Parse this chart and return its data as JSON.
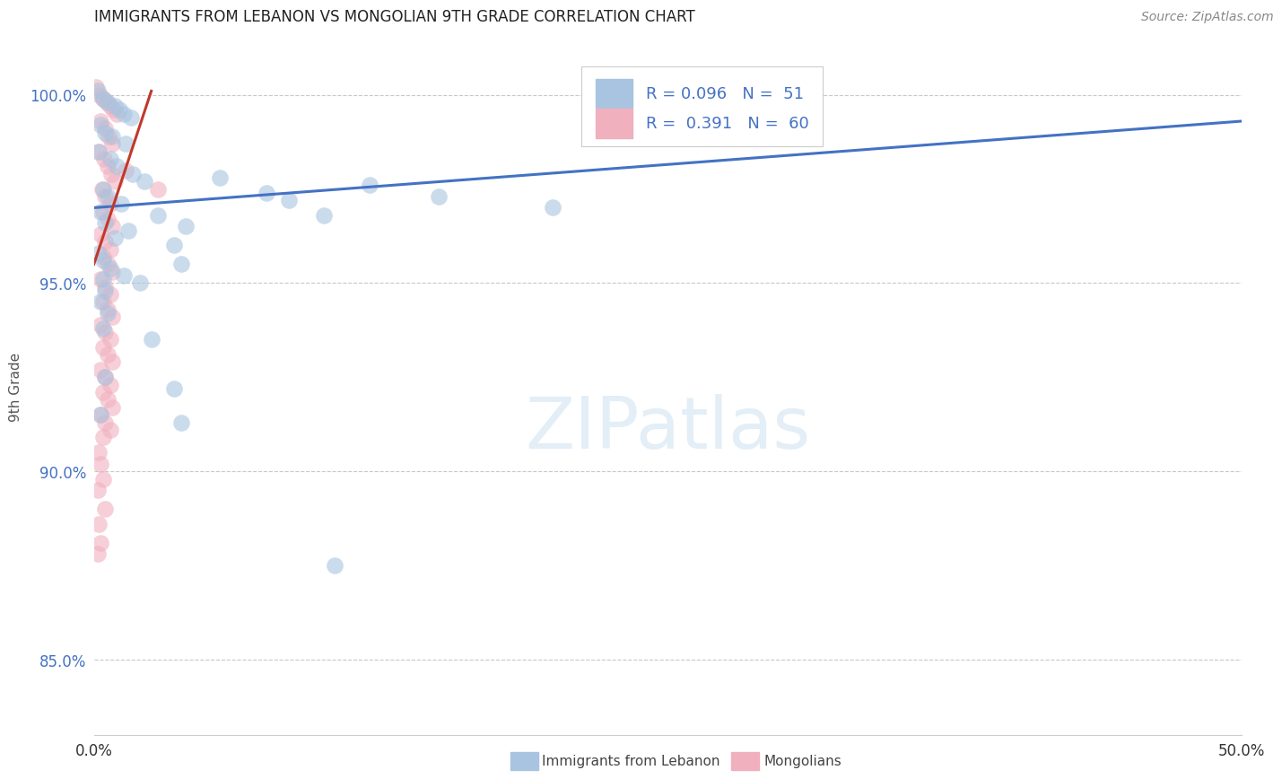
{
  "title": "IMMIGRANTS FROM LEBANON VS MONGOLIAN 9TH GRADE CORRELATION CHART",
  "source": "Source: ZipAtlas.com",
  "ylabel": "9th Grade",
  "xlim": [
    0.0,
    50.0
  ],
  "ylim": [
    83.0,
    101.5
  ],
  "yticks": [
    85.0,
    90.0,
    95.0,
    100.0
  ],
  "ytick_labels": [
    "85.0%",
    "90.0%",
    "95.0%",
    "100.0%"
  ],
  "xticks": [
    0.0,
    10.0,
    20.0,
    30.0,
    40.0,
    50.0
  ],
  "xtick_labels": [
    "0.0%",
    "",
    "",
    "",
    "",
    "50.0%"
  ],
  "legend_line1": "R = 0.096   N =  51",
  "legend_line2": "R =  0.391   N =  60",
  "blue_color": "#a8c4e0",
  "pink_color": "#f0b0be",
  "trend_blue": "#4472c4",
  "trend_pink": "#c0392b",
  "watermark_text": "ZIPatlas",
  "blue_scatter": [
    [
      0.15,
      100.1
    ],
    [
      0.4,
      99.9
    ],
    [
      0.6,
      99.8
    ],
    [
      0.9,
      99.7
    ],
    [
      1.1,
      99.6
    ],
    [
      1.3,
      99.5
    ],
    [
      1.6,
      99.4
    ],
    [
      0.3,
      99.2
    ],
    [
      0.5,
      99.0
    ],
    [
      0.8,
      98.9
    ],
    [
      1.4,
      98.7
    ],
    [
      0.2,
      98.5
    ],
    [
      0.7,
      98.3
    ],
    [
      1.0,
      98.1
    ],
    [
      1.7,
      97.9
    ],
    [
      2.2,
      97.7
    ],
    [
      0.4,
      97.5
    ],
    [
      0.6,
      97.3
    ],
    [
      1.2,
      97.1
    ],
    [
      0.3,
      96.9
    ],
    [
      2.8,
      96.8
    ],
    [
      0.5,
      96.6
    ],
    [
      1.5,
      96.4
    ],
    [
      0.9,
      96.2
    ],
    [
      3.5,
      96.0
    ],
    [
      5.5,
      97.8
    ],
    [
      7.5,
      97.4
    ],
    [
      0.2,
      95.8
    ],
    [
      0.4,
      95.6
    ],
    [
      0.7,
      95.4
    ],
    [
      1.3,
      95.2
    ],
    [
      2.0,
      95.0
    ],
    [
      0.5,
      94.8
    ],
    [
      4.0,
      96.5
    ],
    [
      8.5,
      97.2
    ],
    [
      12.0,
      97.6
    ],
    [
      20.0,
      97.0
    ],
    [
      25.0,
      100.3
    ],
    [
      0.3,
      94.5
    ],
    [
      0.6,
      94.2
    ],
    [
      3.8,
      95.5
    ],
    [
      10.0,
      96.8
    ],
    [
      15.0,
      97.3
    ],
    [
      0.4,
      93.8
    ],
    [
      2.5,
      93.5
    ],
    [
      0.5,
      92.5
    ],
    [
      3.5,
      92.2
    ],
    [
      0.3,
      91.5
    ],
    [
      3.8,
      91.3
    ],
    [
      10.5,
      87.5
    ],
    [
      0.4,
      95.1
    ]
  ],
  "pink_scatter": [
    [
      0.1,
      100.2
    ],
    [
      0.25,
      100.0
    ],
    [
      0.4,
      99.9
    ],
    [
      0.55,
      99.8
    ],
    [
      0.7,
      99.7
    ],
    [
      0.85,
      99.6
    ],
    [
      1.0,
      99.5
    ],
    [
      0.3,
      99.3
    ],
    [
      0.5,
      99.1
    ],
    [
      0.65,
      98.9
    ],
    [
      0.8,
      98.7
    ],
    [
      0.2,
      98.5
    ],
    [
      0.45,
      98.3
    ],
    [
      0.6,
      98.1
    ],
    [
      0.75,
      97.9
    ],
    [
      0.9,
      97.7
    ],
    [
      0.35,
      97.5
    ],
    [
      0.5,
      97.3
    ],
    [
      0.7,
      97.1
    ],
    [
      0.4,
      96.9
    ],
    [
      0.6,
      96.7
    ],
    [
      0.8,
      96.5
    ],
    [
      0.3,
      96.3
    ],
    [
      0.5,
      96.1
    ],
    [
      0.7,
      95.9
    ],
    [
      0.4,
      95.7
    ],
    [
      0.6,
      95.5
    ],
    [
      0.8,
      95.3
    ],
    [
      0.3,
      95.1
    ],
    [
      0.5,
      94.9
    ],
    [
      0.7,
      94.7
    ],
    [
      0.4,
      94.5
    ],
    [
      0.6,
      94.3
    ],
    [
      0.8,
      94.1
    ],
    [
      0.3,
      93.9
    ],
    [
      0.5,
      93.7
    ],
    [
      0.7,
      93.5
    ],
    [
      0.4,
      93.3
    ],
    [
      0.6,
      93.1
    ],
    [
      0.8,
      92.9
    ],
    [
      0.3,
      92.7
    ],
    [
      0.5,
      92.5
    ],
    [
      0.7,
      92.3
    ],
    [
      0.4,
      92.1
    ],
    [
      0.6,
      91.9
    ],
    [
      0.8,
      91.7
    ],
    [
      0.3,
      91.5
    ],
    [
      0.5,
      91.3
    ],
    [
      0.7,
      91.1
    ],
    [
      0.4,
      90.9
    ],
    [
      0.2,
      90.5
    ],
    [
      0.3,
      90.2
    ],
    [
      0.4,
      89.8
    ],
    [
      0.15,
      89.5
    ],
    [
      0.5,
      89.0
    ],
    [
      0.2,
      88.6
    ],
    [
      0.3,
      88.1
    ],
    [
      0.15,
      87.8
    ],
    [
      1.4,
      98.0
    ],
    [
      2.8,
      97.5
    ]
  ],
  "blue_trend_x": [
    0.0,
    50.0
  ],
  "blue_trend_y": [
    97.0,
    99.3
  ],
  "pink_trend_x": [
    0.0,
    2.5
  ],
  "pink_trend_y": [
    95.5,
    100.1
  ],
  "background_color": "#ffffff",
  "grid_color": "#c8c8c8"
}
